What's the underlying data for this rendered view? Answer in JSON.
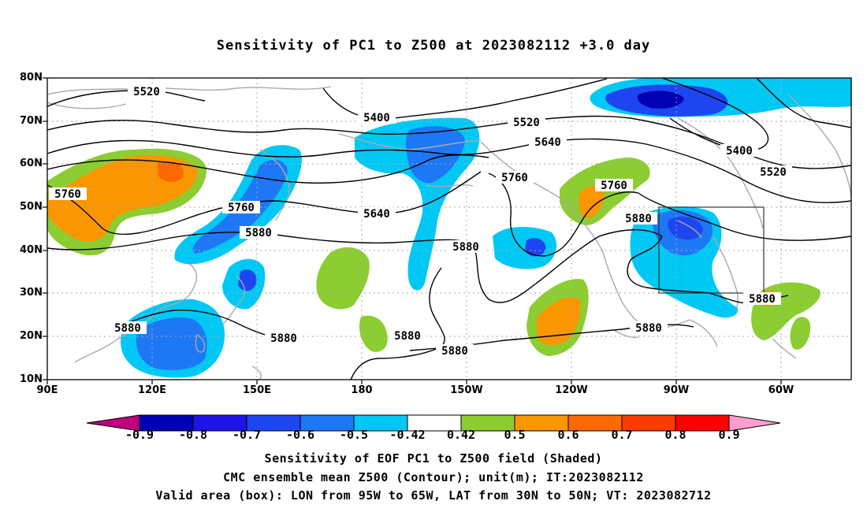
{
  "title": "Sensitivity of PC1 to Z500 at 2023082112 +3.0 day",
  "map": {
    "lat_labels": [
      "80N",
      "70N",
      "60N",
      "50N",
      "40N",
      "30N",
      "20N",
      "10N"
    ],
    "lon_labels": [
      "90E",
      "120E",
      "150E",
      "180",
      "150W",
      "120W",
      "90W",
      "60W"
    ],
    "contour_labels": [
      {
        "text": "5520"
      },
      {
        "text": "5400"
      },
      {
        "text": "5520"
      },
      {
        "text": "5640"
      },
      {
        "text": "5400"
      },
      {
        "text": "5520"
      },
      {
        "text": "5760"
      },
      {
        "text": "5760"
      },
      {
        "text": "5760"
      },
      {
        "text": "5640"
      },
      {
        "text": "5760"
      },
      {
        "text": "5880"
      },
      {
        "text": "5880"
      },
      {
        "text": "5880"
      },
      {
        "text": "5880"
      },
      {
        "text": "5880"
      },
      {
        "text": "5880"
      },
      {
        "text": "5880"
      },
      {
        "text": "5880"
      },
      {
        "text": "5880"
      }
    ],
    "valid_box": {
      "lon_from": "95W",
      "lon_to": "65W",
      "lat_from": "30N",
      "lat_to": "50N"
    }
  },
  "colorbar": {
    "labels": [
      "-0.9",
      "-0.8",
      "-0.7",
      "-0.6",
      "-0.5",
      "-0.42",
      "0.42",
      "0.5",
      "0.6",
      "0.7",
      "0.8",
      "0.9"
    ],
    "colors": {
      "below_min": "#c0007f",
      "b1": "#0000b4",
      "b2": "#1e14e6",
      "b3": "#1e46f0",
      "b4": "#1e78f5",
      "b5": "#00c8f5",
      "neutral": "#ffffff",
      "p1": "#8ccd32",
      "p2": "#fa9600",
      "p3": "#fa6a00",
      "p4": "#fa3c00",
      "p5": "#ff0000",
      "above_max": "#ff9fcf"
    }
  },
  "captions": [
    "Sensitivity of EOF PC1 to Z500 field (Shaded)",
    "CMC ensemble mean Z500 (Contour); unit(m); IT:2023082112",
    "Valid area (box): LON from 95W to 65W, LAT from 30N to 50N; VT: 2023082712"
  ]
}
